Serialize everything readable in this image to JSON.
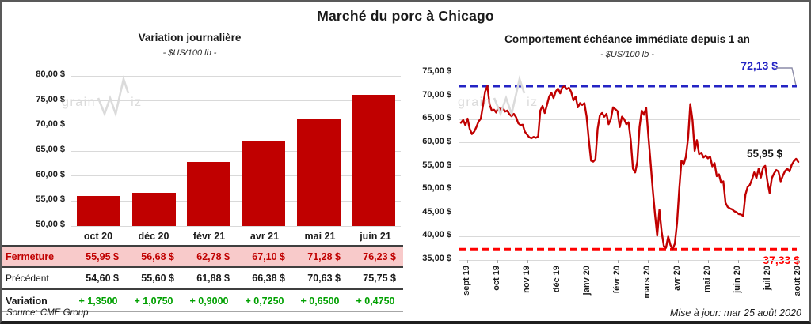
{
  "page": {
    "title": "Marché du porc à Chicago",
    "watermark": "grainwiz",
    "source_note": "Source: CME Group",
    "update_note": "Mise à jour: mar 25 août 2020"
  },
  "table": {
    "columns": [
      "oct 20",
      "déc 20",
      "févr 21",
      "avr 21",
      "mai 21",
      "juin 21"
    ],
    "rows": [
      {
        "label": "Fermeture",
        "values": [
          "55,95 $",
          "56,68 $",
          "62,78 $",
          "67,10 $",
          "71,28 $",
          "76,23 $"
        ]
      },
      {
        "label": "Précédent",
        "values": [
          "54,60 $",
          "55,60 $",
          "61,88 $",
          "66,38 $",
          "70,63 $",
          "75,75 $"
        ]
      },
      {
        "label": "Variation",
        "values": [
          "+ 1,3500",
          "+ 1,0750",
          "+ 0,9000",
          "+ 0,7250",
          "+ 0,6500",
          "+ 0,4750"
        ]
      }
    ]
  },
  "chart_data": [
    {
      "type": "bar",
      "title": "Variation journalière",
      "subtitle": "- $US/100 lb -",
      "unit": "$US/100 lb",
      "categories": [
        "oct 20",
        "déc 20",
        "févr 21",
        "avr 21",
        "mai 21",
        "juin 21"
      ],
      "values": [
        55.95,
        56.68,
        62.78,
        67.1,
        71.28,
        76.23
      ],
      "ylim": [
        50,
        80
      ],
      "y_tick_step": 5,
      "y_tick_labels": [
        "80,00 $",
        "75,00 $",
        "70,00 $",
        "65,00 $",
        "60,00 $",
        "55,00 $",
        "50,00 $"
      ],
      "bar_color": "#c00000",
      "grid": true
    },
    {
      "type": "line",
      "title": "Comportement échéance immédiate depuis 1 an",
      "subtitle": "- $US/100 lb -",
      "unit": "$US/100 lb",
      "x_labels": [
        "sept 19",
        "oct 19",
        "nov 19",
        "déc 19",
        "janv 20",
        "févr 20",
        "mars 20",
        "avr 20",
        "mai 20",
        "juin 20",
        "juil 20",
        "août 20"
      ],
      "ylim": [
        35,
        75
      ],
      "y_tick_step": 5,
      "y_tick_labels": [
        "75,00 $",
        "70,00 $",
        "65,00 $",
        "60,00 $",
        "55,00 $",
        "50,00 $",
        "45,00 $",
        "40,00 $",
        "35,00 $"
      ],
      "line_color": "#c00000",
      "grid": true,
      "max_line": {
        "value": 72.13,
        "label": "72,13 $",
        "color": "#2424c4"
      },
      "min_line": {
        "value": 37.33,
        "label": "37,33 $",
        "color": "#ff0000"
      },
      "last_point_label": "55,95 $",
      "last_value": 55.95,
      "values": [
        64.3,
        64.9,
        63.8,
        65.2,
        63.0,
        61.9,
        62.4,
        63.4,
        64.6,
        65.2,
        68.0,
        71.0,
        72.13,
        68.2,
        66.9,
        67.1,
        66.5,
        67.6,
        67.1,
        67.5,
        66.7,
        66.9,
        66.1,
        65.7,
        66.2,
        65.5,
        64.2,
        63.8,
        63.9,
        62.4,
        61.8,
        61.2,
        61.0,
        61.3,
        61.1,
        61.4,
        66.9,
        67.9,
        66.4,
        68.1,
        69.9,
        70.7,
        69.6,
        71.0,
        71.6,
        70.6,
        71.9,
        72.1,
        71.5,
        71.8,
        70.9,
        69.1,
        69.9,
        67.6,
        68.5,
        68.1,
        68.5,
        65.6,
        60.6,
        56.2,
        56.0,
        56.5,
        63.0,
        65.9,
        66.4,
        65.6,
        66.2,
        64.0,
        65.1,
        67.6,
        67.2,
        66.8,
        63.4,
        65.6,
        65.1,
        64.0,
        64.4,
        60.6,
        54.5,
        53.7,
        56.0,
        63.4,
        66.9,
        66.0,
        67.5,
        61.4,
        55.7,
        50.0,
        44.8,
        40.2,
        45.7,
        41.0,
        38.0,
        37.6,
        40.0,
        38.2,
        37.33,
        38.5,
        43.0,
        50.0,
        56.2,
        55.4,
        57.0,
        61.0,
        68.3,
        64.8,
        58.3,
        60.6,
        57.6,
        57.9,
        56.9,
        57.3,
        56.7,
        57.1,
        55.0,
        55.7,
        52.9,
        53.3,
        51.5,
        51.8,
        47.2,
        46.3,
        46.0,
        45.8,
        45.4,
        45.2,
        44.8,
        44.7,
        44.4,
        48.9,
        50.6,
        51.0,
        52.2,
        53.7,
        52.5,
        54.5,
        52.6,
        54.7,
        55.1,
        51.8,
        49.3,
        52.5,
        53.5,
        54.2,
        53.9,
        51.8,
        53.0,
        54.0,
        54.5,
        53.9,
        55.3,
        56.1,
        56.6,
        55.95
      ]
    }
  ],
  "colors": {
    "accent_red": "#c00000",
    "pink_row": "#f8caca",
    "variation_green": "#00a000",
    "max_blue": "#2424c4",
    "min_red": "#ff0000",
    "gridline": "#d9d9d9",
    "watermark": "#dbdbdb"
  }
}
